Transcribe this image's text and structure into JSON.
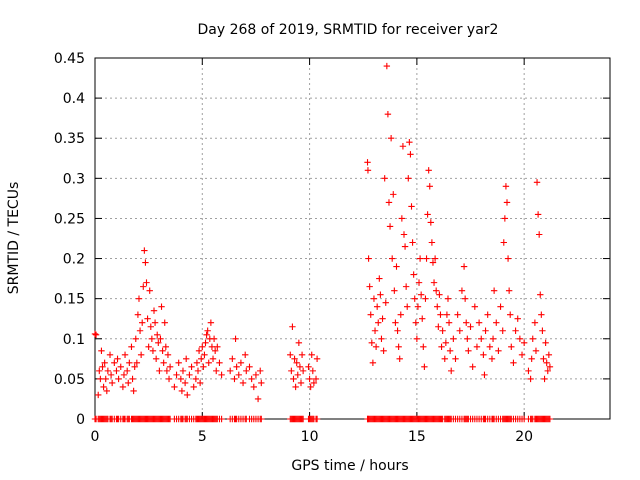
{
  "chart_data": {
    "type": "scatter",
    "title": "Day 268 of 2019, SRMTID for receiver yar2",
    "xlabel": "GPS time / hours",
    "ylabel": "SRMTID / TECUs",
    "xlim": [
      0,
      24
    ],
    "ylim": [
      0,
      0.45
    ],
    "xticks": [
      0,
      5,
      10,
      15,
      20
    ],
    "xtick_labels": [
      "0",
      "5",
      "10",
      "15",
      "20"
    ],
    "yticks": [
      0,
      0.05,
      0.1,
      0.15,
      0.2,
      0.25,
      0.3,
      0.35,
      0.4,
      0.45
    ],
    "ytick_labels": [
      "0",
      "0.05",
      "0.1",
      "0.15",
      "0.2",
      "0.25",
      "0.3",
      "0.35",
      "0.4",
      "0.45"
    ],
    "grid": true,
    "marker": "+",
    "color": "#ff0000",
    "series": [
      {
        "name": "SRMTID",
        "points": [
          [
            0.0,
            0.106
          ],
          [
            0.05,
            0.105
          ],
          [
            0.15,
            0.03
          ],
          [
            0.2,
            0.06
          ],
          [
            0.25,
            0.05
          ],
          [
            0.3,
            0.085
          ],
          [
            0.35,
            0.065
          ],
          [
            0.4,
            0.04
          ],
          [
            0.45,
            0.07
          ],
          [
            0.5,
            0.05
          ],
          [
            0.55,
            0.035
          ],
          [
            0.6,
            0.06
          ],
          [
            0.7,
            0.08
          ],
          [
            0.75,
            0.055
          ],
          [
            0.8,
            0.045
          ],
          [
            0.9,
            0.07
          ],
          [
            1.0,
            0.06
          ],
          [
            1.05,
            0.075
          ],
          [
            1.1,
            0.05
          ],
          [
            1.2,
            0.065
          ],
          [
            1.3,
            0.04
          ],
          [
            1.35,
            0.055
          ],
          [
            1.4,
            0.08
          ],
          [
            1.5,
            0.06
          ],
          [
            1.55,
            0.045
          ],
          [
            1.6,
            0.07
          ],
          [
            1.7,
            0.09
          ],
          [
            1.75,
            0.05
          ],
          [
            1.8,
            0.035
          ],
          [
            1.85,
            0.065
          ],
          [
            1.9,
            0.1
          ],
          [
            1.95,
            0.07
          ],
          [
            2.0,
            0.13
          ],
          [
            2.05,
            0.15
          ],
          [
            2.1,
            0.11
          ],
          [
            2.15,
            0.08
          ],
          [
            2.2,
            0.12
          ],
          [
            2.25,
            0.165
          ],
          [
            2.3,
            0.21
          ],
          [
            2.35,
            0.195
          ],
          [
            2.4,
            0.17
          ],
          [
            2.45,
            0.125
          ],
          [
            2.5,
            0.09
          ],
          [
            2.55,
            0.16
          ],
          [
            2.6,
            0.115
          ],
          [
            2.65,
            0.1
          ],
          [
            2.7,
            0.085
          ],
          [
            2.75,
            0.135
          ],
          [
            2.8,
            0.12
          ],
          [
            2.85,
            0.075
          ],
          [
            2.9,
            0.105
          ],
          [
            2.95,
            0.095
          ],
          [
            3.0,
            0.06
          ],
          [
            3.05,
            0.1
          ],
          [
            3.1,
            0.14
          ],
          [
            3.15,
            0.085
          ],
          [
            3.2,
            0.07
          ],
          [
            3.25,
            0.12
          ],
          [
            3.3,
            0.09
          ],
          [
            3.35,
            0.06
          ],
          [
            3.4,
            0.08
          ],
          [
            3.45,
            0.05
          ],
          [
            3.5,
            0.065
          ],
          [
            3.7,
            0.04
          ],
          [
            3.8,
            0.055
          ],
          [
            3.9,
            0.07
          ],
          [
            4.0,
            0.05
          ],
          [
            4.05,
            0.035
          ],
          [
            4.1,
            0.06
          ],
          [
            4.2,
            0.045
          ],
          [
            4.25,
            0.075
          ],
          [
            4.3,
            0.03
          ],
          [
            4.4,
            0.055
          ],
          [
            4.5,
            0.065
          ],
          [
            4.6,
            0.04
          ],
          [
            4.7,
            0.05
          ],
          [
            4.75,
            0.07
          ],
          [
            4.8,
            0.06
          ],
          [
            4.85,
            0.085
          ],
          [
            4.9,
            0.045
          ],
          [
            4.95,
            0.075
          ],
          [
            5.0,
            0.09
          ],
          [
            5.05,
            0.065
          ],
          [
            5.1,
            0.08
          ],
          [
            5.15,
            0.095
          ],
          [
            5.2,
            0.105
          ],
          [
            5.25,
            0.11
          ],
          [
            5.3,
            0.07
          ],
          [
            5.35,
            0.1
          ],
          [
            5.4,
            0.12
          ],
          [
            5.45,
            0.09
          ],
          [
            5.5,
            0.075
          ],
          [
            5.55,
            0.1
          ],
          [
            5.6,
            0.085
          ],
          [
            5.65,
            0.06
          ],
          [
            5.7,
            0.09
          ],
          [
            5.8,
            0.07
          ],
          [
            5.9,
            0.055
          ],
          [
            6.3,
            0.06
          ],
          [
            6.4,
            0.075
          ],
          [
            6.5,
            0.05
          ],
          [
            6.55,
            0.1
          ],
          [
            6.6,
            0.065
          ],
          [
            6.7,
            0.055
          ],
          [
            6.8,
            0.07
          ],
          [
            6.9,
            0.045
          ],
          [
            7.0,
            0.08
          ],
          [
            7.05,
            0.06
          ],
          [
            7.2,
            0.065
          ],
          [
            7.3,
            0.05
          ],
          [
            7.4,
            0.04
          ],
          [
            7.5,
            0.055
          ],
          [
            7.6,
            0.025
          ],
          [
            7.7,
            0.06
          ],
          [
            7.75,
            0.045
          ],
          [
            9.1,
            0.08
          ],
          [
            9.15,
            0.06
          ],
          [
            9.2,
            0.115
          ],
          [
            9.25,
            0.05
          ],
          [
            9.3,
            0.075
          ],
          [
            9.35,
            0.04
          ],
          [
            9.4,
            0.07
          ],
          [
            9.45,
            0.055
          ],
          [
            9.5,
            0.095
          ],
          [
            9.55,
            0.065
          ],
          [
            9.6,
            0.045
          ],
          [
            9.65,
            0.08
          ],
          [
            9.7,
            0.06
          ],
          [
            9.95,
            0.065
          ],
          [
            10.0,
            0.05
          ],
          [
            10.05,
            0.04
          ],
          [
            10.1,
            0.08
          ],
          [
            10.15,
            0.06
          ],
          [
            10.2,
            0.045
          ],
          [
            10.3,
            0.05
          ],
          [
            10.35,
            0.075
          ],
          [
            12.7,
            0.32
          ],
          [
            12.72,
            0.31
          ],
          [
            12.75,
            0.2
          ],
          [
            12.8,
            0.165
          ],
          [
            12.85,
            0.13
          ],
          [
            12.9,
            0.095
          ],
          [
            12.95,
            0.07
          ],
          [
            13.0,
            0.15
          ],
          [
            13.05,
            0.11
          ],
          [
            13.1,
            0.09
          ],
          [
            13.15,
            0.14
          ],
          [
            13.2,
            0.12
          ],
          [
            13.25,
            0.175
          ],
          [
            13.3,
            0.155
          ],
          [
            13.35,
            0.1
          ],
          [
            13.4,
            0.125
          ],
          [
            13.45,
            0.085
          ],
          [
            13.5,
            0.3
          ],
          [
            13.55,
            0.145
          ],
          [
            13.6,
            0.44
          ],
          [
            13.65,
            0.38
          ],
          [
            13.7,
            0.27
          ],
          [
            13.75,
            0.24
          ],
          [
            13.8,
            0.35
          ],
          [
            13.85,
            0.2
          ],
          [
            13.9,
            0.28
          ],
          [
            13.95,
            0.16
          ],
          [
            14.0,
            0.12
          ],
          [
            14.05,
            0.19
          ],
          [
            14.1,
            0.11
          ],
          [
            14.15,
            0.09
          ],
          [
            14.2,
            0.075
          ],
          [
            14.25,
            0.13
          ],
          [
            14.3,
            0.25
          ],
          [
            14.35,
            0.34
          ],
          [
            14.4,
            0.23
          ],
          [
            14.45,
            0.215
          ],
          [
            14.5,
            0.165
          ],
          [
            14.55,
            0.14
          ],
          [
            14.6,
            0.3
          ],
          [
            14.65,
            0.345
          ],
          [
            14.7,
            0.33
          ],
          [
            14.75,
            0.265
          ],
          [
            14.8,
            0.22
          ],
          [
            14.85,
            0.18
          ],
          [
            14.9,
            0.15
          ],
          [
            14.95,
            0.12
          ],
          [
            15.0,
            0.1
          ],
          [
            15.05,
            0.14
          ],
          [
            15.1,
            0.17
          ],
          [
            15.15,
            0.2
          ],
          [
            15.2,
            0.155
          ],
          [
            15.25,
            0.125
          ],
          [
            15.3,
            0.09
          ],
          [
            15.35,
            0.065
          ],
          [
            15.4,
            0.15
          ],
          [
            15.45,
            0.2
          ],
          [
            15.5,
            0.255
          ],
          [
            15.55,
            0.31
          ],
          [
            15.6,
            0.29
          ],
          [
            15.65,
            0.245
          ],
          [
            15.7,
            0.22
          ],
          [
            15.75,
            0.195
          ],
          [
            15.8,
            0.17
          ],
          [
            15.85,
            0.2
          ],
          [
            15.9,
            0.16
          ],
          [
            15.95,
            0.14
          ],
          [
            16.0,
            0.115
          ],
          [
            16.05,
            0.155
          ],
          [
            16.1,
            0.13
          ],
          [
            16.15,
            0.09
          ],
          [
            16.2,
            0.11
          ],
          [
            16.3,
            0.075
          ],
          [
            16.35,
            0.095
          ],
          [
            16.4,
            0.13
          ],
          [
            16.45,
            0.15
          ],
          [
            16.5,
            0.12
          ],
          [
            16.55,
            0.085
          ],
          [
            16.6,
            0.06
          ],
          [
            16.7,
            0.1
          ],
          [
            16.8,
            0.075
          ],
          [
            16.9,
            0.13
          ],
          [
            17.0,
            0.11
          ],
          [
            17.1,
            0.16
          ],
          [
            17.2,
            0.19
          ],
          [
            17.25,
            0.15
          ],
          [
            17.3,
            0.12
          ],
          [
            17.35,
            0.1
          ],
          [
            17.4,
            0.085
          ],
          [
            17.5,
            0.115
          ],
          [
            17.6,
            0.065
          ],
          [
            17.7,
            0.14
          ],
          [
            17.8,
            0.09
          ],
          [
            17.9,
            0.12
          ],
          [
            18.0,
            0.1
          ],
          [
            18.1,
            0.08
          ],
          [
            18.15,
            0.055
          ],
          [
            18.2,
            0.11
          ],
          [
            18.3,
            0.13
          ],
          [
            18.4,
            0.09
          ],
          [
            18.5,
            0.075
          ],
          [
            18.55,
            0.1
          ],
          [
            18.6,
            0.16
          ],
          [
            18.7,
            0.12
          ],
          [
            18.8,
            0.085
          ],
          [
            18.9,
            0.14
          ],
          [
            19.0,
            0.11
          ],
          [
            19.05,
            0.22
          ],
          [
            19.1,
            0.25
          ],
          [
            19.15,
            0.29
          ],
          [
            19.2,
            0.27
          ],
          [
            19.25,
            0.2
          ],
          [
            19.3,
            0.16
          ],
          [
            19.35,
            0.13
          ],
          [
            19.4,
            0.09
          ],
          [
            19.5,
            0.07
          ],
          [
            19.6,
            0.11
          ],
          [
            19.7,
            0.125
          ],
          [
            19.8,
            0.1
          ],
          [
            19.9,
            0.08
          ],
          [
            20.0,
            0.095
          ],
          [
            20.2,
            0.06
          ],
          [
            20.3,
            0.05
          ],
          [
            20.35,
            0.075
          ],
          [
            20.4,
            0.1
          ],
          [
            20.5,
            0.12
          ],
          [
            20.55,
            0.085
          ],
          [
            20.6,
            0.295
          ],
          [
            20.65,
            0.255
          ],
          [
            20.7,
            0.23
          ],
          [
            20.75,
            0.155
          ],
          [
            20.8,
            0.13
          ],
          [
            20.85,
            0.11
          ],
          [
            20.9,
            0.075
          ],
          [
            20.95,
            0.05
          ],
          [
            21.0,
            0.095
          ],
          [
            21.05,
            0.07
          ],
          [
            21.1,
            0.06
          ],
          [
            21.15,
            0.08
          ],
          [
            21.2,
            0.065
          ]
        ]
      }
    ]
  }
}
